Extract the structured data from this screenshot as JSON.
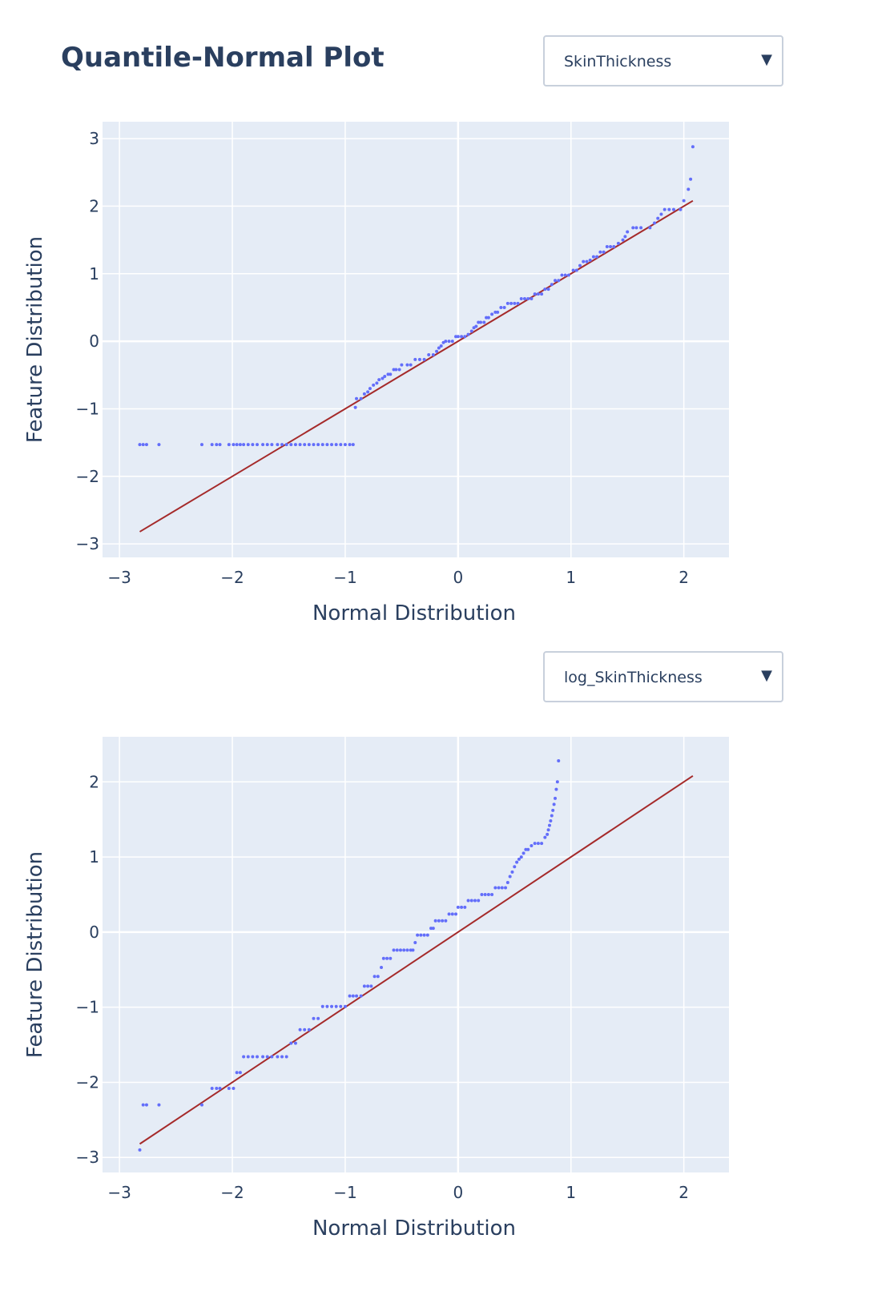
{
  "page": {
    "title": "Quantile-Normal Plot"
  },
  "dropdowns": [
    {
      "selected": "SkinThickness",
      "caret": "▼"
    },
    {
      "selected": "log_SkinThickness",
      "caret": "▼"
    }
  ],
  "colors": {
    "plot_bg": "#e5ecf6",
    "grid": "#ffffff",
    "points": "#636efa",
    "line": "#a52a2a",
    "text": "#2a3f5f"
  },
  "chart_data": [
    {
      "type": "scatter",
      "title": "",
      "xlabel": "Normal Distribution",
      "ylabel": "Feature Distribution",
      "xlim": [
        -3.15,
        2.4
      ],
      "ylim": [
        -3.2,
        3.25
      ],
      "xticks": [
        -3,
        -2,
        -1,
        0,
        1,
        2
      ],
      "xtick_labels": [
        "−3",
        "−2",
        "−1",
        "0",
        "1",
        "2"
      ],
      "yticks": [
        -3,
        -2,
        -1,
        0,
        1,
        2,
        3
      ],
      "ytick_labels": [
        "−3",
        "−2",
        "−1",
        "0",
        "1",
        "2",
        "3"
      ],
      "grid": true,
      "reference_line": {
        "x": [
          -2.82,
          2.08
        ],
        "y": [
          -2.82,
          2.08
        ]
      },
      "points": [
        [
          -2.82,
          -1.53
        ],
        [
          -2.79,
          -1.53
        ],
        [
          -2.76,
          -1.53
        ],
        [
          -2.65,
          -1.53
        ],
        [
          -2.27,
          -1.53
        ],
        [
          -2.18,
          -1.53
        ],
        [
          -2.14,
          -1.53
        ],
        [
          -2.11,
          -1.53
        ],
        [
          -2.03,
          -1.53
        ],
        [
          -1.99,
          -1.53
        ],
        [
          -1.96,
          -1.53
        ],
        [
          -1.93,
          -1.53
        ],
        [
          -1.9,
          -1.53
        ],
        [
          -1.86,
          -1.53
        ],
        [
          -1.82,
          -1.53
        ],
        [
          -1.78,
          -1.53
        ],
        [
          -1.73,
          -1.53
        ],
        [
          -1.69,
          -1.53
        ],
        [
          -1.65,
          -1.53
        ],
        [
          -1.6,
          -1.53
        ],
        [
          -1.56,
          -1.53
        ],
        [
          -1.52,
          -1.53
        ],
        [
          -1.48,
          -1.53
        ],
        [
          -1.44,
          -1.53
        ],
        [
          -1.4,
          -1.53
        ],
        [
          -1.36,
          -1.53
        ],
        [
          -1.32,
          -1.53
        ],
        [
          -1.28,
          -1.53
        ],
        [
          -1.24,
          -1.53
        ],
        [
          -1.2,
          -1.53
        ],
        [
          -1.16,
          -1.53
        ],
        [
          -1.12,
          -1.53
        ],
        [
          -1.08,
          -1.53
        ],
        [
          -1.04,
          -1.53
        ],
        [
          -1.0,
          -1.53
        ],
        [
          -0.96,
          -1.53
        ],
        [
          -0.93,
          -1.53
        ],
        [
          -0.91,
          -0.98
        ],
        [
          -0.9,
          -0.85
        ],
        [
          -0.86,
          -0.85
        ],
        [
          -0.83,
          -0.78
        ],
        [
          -0.8,
          -0.75
        ],
        [
          -0.78,
          -0.7
        ],
        [
          -0.75,
          -0.65
        ],
        [
          -0.72,
          -0.62
        ],
        [
          -0.7,
          -0.57
        ],
        [
          -0.67,
          -0.55
        ],
        [
          -0.65,
          -0.52
        ],
        [
          -0.62,
          -0.49
        ],
        [
          -0.6,
          -0.49
        ],
        [
          -0.57,
          -0.42
        ],
        [
          -0.55,
          -0.42
        ],
        [
          -0.52,
          -0.42
        ],
        [
          -0.5,
          -0.35
        ],
        [
          -0.45,
          -0.35
        ],
        [
          -0.42,
          -0.35
        ],
        [
          -0.38,
          -0.27
        ],
        [
          -0.34,
          -0.27
        ],
        [
          -0.3,
          -0.27
        ],
        [
          -0.26,
          -0.2
        ],
        [
          -0.22,
          -0.2
        ],
        [
          -0.19,
          -0.15
        ],
        [
          -0.17,
          -0.1
        ],
        [
          -0.15,
          -0.07
        ],
        [
          -0.13,
          -0.02
        ],
        [
          -0.11,
          0.0
        ],
        [
          -0.08,
          0.0
        ],
        [
          -0.05,
          0.0
        ],
        [
          -0.02,
          0.07
        ],
        [
          0.0,
          0.07
        ],
        [
          0.03,
          0.07
        ],
        [
          0.06,
          0.07
        ],
        [
          0.09,
          0.1
        ],
        [
          0.12,
          0.15
        ],
        [
          0.14,
          0.2
        ],
        [
          0.16,
          0.22
        ],
        [
          0.18,
          0.28
        ],
        [
          0.2,
          0.28
        ],
        [
          0.23,
          0.28
        ],
        [
          0.25,
          0.35
        ],
        [
          0.27,
          0.35
        ],
        [
          0.3,
          0.4
        ],
        [
          0.33,
          0.43
        ],
        [
          0.35,
          0.43
        ],
        [
          0.38,
          0.5
        ],
        [
          0.41,
          0.5
        ],
        [
          0.44,
          0.56
        ],
        [
          0.47,
          0.56
        ],
        [
          0.5,
          0.56
        ],
        [
          0.53,
          0.56
        ],
        [
          0.56,
          0.63
        ],
        [
          0.59,
          0.63
        ],
        [
          0.62,
          0.63
        ],
        [
          0.65,
          0.63
        ],
        [
          0.68,
          0.7
        ],
        [
          0.71,
          0.7
        ],
        [
          0.74,
          0.7
        ],
        [
          0.77,
          0.77
        ],
        [
          0.8,
          0.77
        ],
        [
          0.83,
          0.84
        ],
        [
          0.86,
          0.9
        ],
        [
          0.89,
          0.9
        ],
        [
          0.92,
          0.98
        ],
        [
          0.95,
          0.98
        ],
        [
          0.98,
          0.98
        ],
        [
          1.02,
          1.05
        ],
        [
          1.05,
          1.05
        ],
        [
          1.08,
          1.12
        ],
        [
          1.11,
          1.18
        ],
        [
          1.14,
          1.18
        ],
        [
          1.17,
          1.2
        ],
        [
          1.2,
          1.25
        ],
        [
          1.23,
          1.25
        ],
        [
          1.26,
          1.32
        ],
        [
          1.29,
          1.32
        ],
        [
          1.32,
          1.4
        ],
        [
          1.35,
          1.4
        ],
        [
          1.38,
          1.4
        ],
        [
          1.42,
          1.45
        ],
        [
          1.46,
          1.5
        ],
        [
          1.48,
          1.55
        ],
        [
          1.5,
          1.62
        ],
        [
          1.55,
          1.68
        ],
        [
          1.58,
          1.68
        ],
        [
          1.62,
          1.68
        ],
        [
          1.7,
          1.68
        ],
        [
          1.74,
          1.75
        ],
        [
          1.77,
          1.82
        ],
        [
          1.8,
          1.88
        ],
        [
          1.83,
          1.95
        ],
        [
          1.87,
          1.95
        ],
        [
          1.91,
          1.95
        ],
        [
          1.97,
          1.95
        ],
        [
          2.0,
          2.08
        ],
        [
          2.04,
          2.25
        ],
        [
          2.06,
          2.4
        ],
        [
          2.08,
          2.88
        ]
      ]
    },
    {
      "type": "scatter",
      "title": "",
      "xlabel": "Normal Distribution",
      "ylabel": "Feature Distribution",
      "xlim": [
        -3.15,
        2.4
      ],
      "ylim": [
        -3.2,
        2.6
      ],
      "xticks": [
        -3,
        -2,
        -1,
        0,
        1,
        2
      ],
      "xtick_labels": [
        "−3",
        "−2",
        "−1",
        "0",
        "1",
        "2"
      ],
      "yticks": [
        -3,
        -2,
        -1,
        0,
        1,
        2
      ],
      "ytick_labels": [
        "−3",
        "−2",
        "−1",
        "0",
        "1",
        "2"
      ],
      "grid": true,
      "reference_line": {
        "x": [
          -2.82,
          2.08
        ],
        "y": [
          -2.82,
          2.08
        ]
      },
      "points": [
        [
          -2.82,
          -2.9
        ],
        [
          -2.79,
          -2.3
        ],
        [
          -2.76,
          -2.3
        ],
        [
          -2.65,
          -2.3
        ],
        [
          -2.27,
          -2.3
        ],
        [
          -2.18,
          -2.08
        ],
        [
          -2.14,
          -2.08
        ],
        [
          -2.11,
          -2.08
        ],
        [
          -2.03,
          -2.08
        ],
        [
          -1.99,
          -2.08
        ],
        [
          -1.96,
          -1.87
        ],
        [
          -1.93,
          -1.87
        ],
        [
          -1.9,
          -1.66
        ],
        [
          -1.86,
          -1.66
        ],
        [
          -1.82,
          -1.66
        ],
        [
          -1.78,
          -1.66
        ],
        [
          -1.73,
          -1.66
        ],
        [
          -1.69,
          -1.66
        ],
        [
          -1.65,
          -1.66
        ],
        [
          -1.6,
          -1.66
        ],
        [
          -1.56,
          -1.66
        ],
        [
          -1.52,
          -1.66
        ],
        [
          -1.48,
          -1.48
        ],
        [
          -1.44,
          -1.48
        ],
        [
          -1.4,
          -1.3
        ],
        [
          -1.36,
          -1.3
        ],
        [
          -1.32,
          -1.3
        ],
        [
          -1.28,
          -1.15
        ],
        [
          -1.24,
          -1.15
        ],
        [
          -1.2,
          -0.99
        ],
        [
          -1.16,
          -0.99
        ],
        [
          -1.12,
          -0.99
        ],
        [
          -1.08,
          -0.99
        ],
        [
          -1.04,
          -0.99
        ],
        [
          -1.0,
          -0.99
        ],
        [
          -0.96,
          -0.85
        ],
        [
          -0.93,
          -0.85
        ],
        [
          -0.9,
          -0.85
        ],
        [
          -0.86,
          -0.85
        ],
        [
          -0.83,
          -0.72
        ],
        [
          -0.8,
          -0.72
        ],
        [
          -0.77,
          -0.72
        ],
        [
          -0.74,
          -0.59
        ],
        [
          -0.71,
          -0.59
        ],
        [
          -0.68,
          -0.47
        ],
        [
          -0.66,
          -0.35
        ],
        [
          -0.63,
          -0.35
        ],
        [
          -0.6,
          -0.35
        ],
        [
          -0.57,
          -0.24
        ],
        [
          -0.54,
          -0.24
        ],
        [
          -0.51,
          -0.24
        ],
        [
          -0.48,
          -0.24
        ],
        [
          -0.45,
          -0.24
        ],
        [
          -0.42,
          -0.24
        ],
        [
          -0.4,
          -0.24
        ],
        [
          -0.38,
          -0.14
        ],
        [
          -0.36,
          -0.04
        ],
        [
          -0.33,
          -0.04
        ],
        [
          -0.3,
          -0.04
        ],
        [
          -0.27,
          -0.04
        ],
        [
          -0.24,
          0.05
        ],
        [
          -0.22,
          0.05
        ],
        [
          -0.2,
          0.15
        ],
        [
          -0.17,
          0.15
        ],
        [
          -0.14,
          0.15
        ],
        [
          -0.11,
          0.15
        ],
        [
          -0.08,
          0.24
        ],
        [
          -0.05,
          0.24
        ],
        [
          -0.02,
          0.24
        ],
        [
          0.0,
          0.33
        ],
        [
          0.03,
          0.33
        ],
        [
          0.06,
          0.33
        ],
        [
          0.09,
          0.42
        ],
        [
          0.12,
          0.42
        ],
        [
          0.15,
          0.42
        ],
        [
          0.18,
          0.42
        ],
        [
          0.21,
          0.5
        ],
        [
          0.24,
          0.5
        ],
        [
          0.27,
          0.5
        ],
        [
          0.3,
          0.5
        ],
        [
          0.33,
          0.59
        ],
        [
          0.36,
          0.59
        ],
        [
          0.39,
          0.59
        ],
        [
          0.42,
          0.59
        ],
        [
          0.44,
          0.66
        ],
        [
          0.46,
          0.74
        ],
        [
          0.48,
          0.8
        ],
        [
          0.5,
          0.87
        ],
        [
          0.52,
          0.93
        ],
        [
          0.54,
          0.97
        ],
        [
          0.56,
          1.0
        ],
        [
          0.58,
          1.05
        ],
        [
          0.6,
          1.1
        ],
        [
          0.62,
          1.1
        ],
        [
          0.65,
          1.15
        ],
        [
          0.68,
          1.18
        ],
        [
          0.71,
          1.18
        ],
        [
          0.74,
          1.18
        ],
        [
          0.77,
          1.26
        ],
        [
          0.79,
          1.3
        ],
        [
          0.8,
          1.36
        ],
        [
          0.81,
          1.42
        ],
        [
          0.82,
          1.48
        ],
        [
          0.83,
          1.55
        ],
        [
          0.84,
          1.62
        ],
        [
          0.85,
          1.7
        ],
        [
          0.86,
          1.78
        ],
        [
          0.87,
          1.9
        ],
        [
          0.88,
          2.0
        ],
        [
          0.89,
          2.28
        ]
      ]
    }
  ]
}
